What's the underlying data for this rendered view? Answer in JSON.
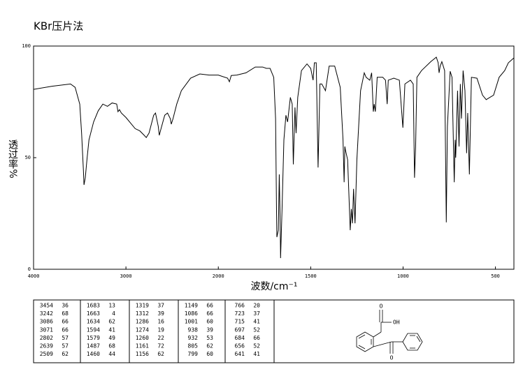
{
  "chart_data": {
    "type": "line",
    "title": "KBr压片法",
    "x_label": "波数/cm⁻¹",
    "y_label": "透过率%",
    "xlim": [
      4000,
      400
    ],
    "xticks": [
      4000,
      3000,
      2000,
      1500,
      1000,
      500
    ],
    "x_scale_break": 2000,
    "x_scale_factor": 2,
    "ylim": [
      0,
      100
    ],
    "yticks": [
      0,
      50,
      100
    ],
    "grid": false,
    "color": "#000000",
    "x": [
      4000,
      3800,
      3600,
      3550,
      3500,
      3480,
      3460,
      3454,
      3440,
      3420,
      3400,
      3350,
      3300,
      3250,
      3200,
      3150,
      3100,
      3086,
      3070,
      3050,
      3000,
      2900,
      2850,
      2802,
      2780,
      2750,
      2700,
      2680,
      2650,
      2639,
      2620,
      2580,
      2550,
      2520,
      2509,
      2490,
      2450,
      2400,
      2300,
      2200,
      2100,
      2000,
      1950,
      1940,
      1930,
      1900,
      1850,
      1800,
      1760,
      1740,
      1720,
      1700,
      1690,
      1685,
      1683,
      1675,
      1670,
      1665,
      1663,
      1655,
      1645,
      1634,
      1625,
      1610,
      1600,
      1594,
      1585,
      1579,
      1570,
      1550,
      1520,
      1500,
      1487,
      1480,
      1470,
      1460,
      1450,
      1440,
      1420,
      1400,
      1370,
      1340,
      1325,
      1319,
      1315,
      1312,
      1300,
      1286,
      1280,
      1274,
      1268,
      1260,
      1250,
      1230,
      1210,
      1200,
      1180,
      1170,
      1161,
      1156,
      1150,
      1140,
      1110,
      1095,
      1086,
      1080,
      1050,
      1020,
      1001,
      990,
      960,
      945,
      938,
      932,
      925,
      900,
      850,
      820,
      810,
      805,
      799,
      790,
      775,
      766,
      760,
      745,
      735,
      723,
      718,
      715,
      705,
      697,
      690,
      684,
      675,
      665,
      656,
      650,
      641,
      630,
      600,
      570,
      550,
      530,
      510,
      480,
      450,
      430,
      400
    ],
    "values": [
      80.6,
      82,
      83,
      81.5,
      74,
      61,
      44,
      37.8,
      41,
      50,
      58,
      66,
      71,
      74,
      73,
      74.5,
      74,
      70.6,
      71.5,
      70,
      68,
      63,
      62,
      60,
      59,
      61,
      69,
      70,
      64,
      60,
      63,
      69,
      70,
      67.5,
      65,
      67.5,
      74,
      80,
      85.6,
      87.5,
      87,
      87,
      85.6,
      84,
      86.8,
      87,
      88,
      90.6,
      90.6,
      90,
      90,
      86,
      67.5,
      27,
      14.4,
      17.5,
      42.5,
      20,
      5,
      27,
      58,
      69,
      66,
      77,
      74,
      47,
      72.5,
      61,
      77,
      89,
      92,
      90,
      84.7,
      92.5,
      92.5,
      45.6,
      83,
      83,
      80,
      91,
      91,
      81.5,
      58,
      39,
      55,
      53.5,
      49,
      17.5,
      27,
      20.6,
      36,
      20.6,
      49,
      80,
      88,
      86,
      84.7,
      88,
      70.6,
      74,
      70.6,
      86,
      86,
      84.7,
      74,
      84.7,
      85.6,
      84.7,
      63.4,
      83,
      84.7,
      83,
      41,
      55,
      86,
      89,
      93,
      95,
      92.5,
      88,
      91,
      93,
      89,
      21,
      64,
      88.7,
      86,
      39,
      58,
      50,
      80,
      55,
      83,
      67.5,
      89,
      80,
      52,
      70,
      42.5,
      86,
      85.6,
      78,
      76,
      77,
      78,
      86,
      89,
      92.5,
      94.7
    ]
  },
  "peak_table": {
    "columns": [
      [
        [
          3454,
          36
        ],
        [
          3242,
          68
        ],
        [
          3086,
          66
        ],
        [
          3071,
          66
        ],
        [
          2802,
          57
        ],
        [
          2639,
          57
        ],
        [
          2509,
          62
        ]
      ],
      [
        [
          1683,
          13
        ],
        [
          1663,
          4
        ],
        [
          1634,
          62
        ],
        [
          1594,
          41
        ],
        [
          1579,
          49
        ],
        [
          1487,
          68
        ],
        [
          1460,
          44
        ]
      ],
      [
        [
          1319,
          37
        ],
        [
          1312,
          39
        ],
        [
          1286,
          16
        ],
        [
          1274,
          19
        ],
        [
          1260,
          22
        ],
        [
          1161,
          72
        ],
        [
          1156,
          62
        ]
      ],
      [
        [
          1149,
          66
        ],
        [
          1086,
          66
        ],
        [
          1001,
          60
        ],
        [
          938,
          39
        ],
        [
          932,
          53
        ],
        [
          805,
          62
        ],
        [
          799,
          60
        ]
      ],
      [
        [
          766,
          20
        ],
        [
          723,
          37
        ],
        [
          715,
          41
        ],
        [
          697,
          52
        ],
        [
          684,
          66
        ],
        [
          656,
          52
        ],
        [
          641,
          41
        ]
      ]
    ]
  },
  "structure": {
    "acid_oxygen": "O",
    "hydroxyl": "OH",
    "ketone_oxygen": "O"
  }
}
